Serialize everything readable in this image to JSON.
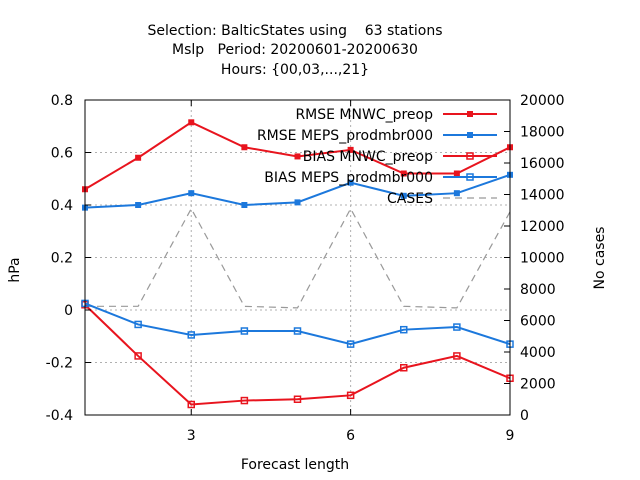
{
  "chart_data": {
    "type": "line",
    "title_lines": [
      "Selection: BalticStates using    63 stations",
      "Mslp   Period: 20200601-20200630",
      "Hours: {00,03,...,21}"
    ],
    "xlabel": "Forecast length",
    "ylabel": "hPa",
    "y2label": "No cases",
    "x": [
      1,
      2,
      3,
      4,
      5,
      6,
      7,
      8,
      9
    ],
    "xlim": [
      1,
      9
    ],
    "xticks": [
      3,
      6,
      9
    ],
    "ylim": [
      -0.4,
      0.8
    ],
    "yticks": [
      -0.4,
      -0.2,
      0,
      0.2,
      0.4,
      0.6,
      0.8
    ],
    "y2lim": [
      0,
      20000
    ],
    "y2ticks": [
      0,
      2000,
      4000,
      6000,
      8000,
      10000,
      12000,
      14000,
      16000,
      18000,
      20000
    ],
    "grid": true,
    "legend_position": "top-right",
    "series": [
      {
        "name": "RMSE MNWC_preop",
        "color": "#e8141e",
        "marker": "filled-square",
        "axis": "left",
        "values": [
          0.46,
          0.58,
          0.715,
          0.62,
          0.585,
          0.61,
          0.52,
          0.52,
          0.62
        ]
      },
      {
        "name": "RMSE MEPS_prodmbr000",
        "color": "#1c78dc",
        "marker": "filled-square",
        "axis": "left",
        "values": [
          0.39,
          0.4,
          0.445,
          0.4,
          0.41,
          0.485,
          0.435,
          0.445,
          0.515
        ]
      },
      {
        "name": "BIAS MNWC_preop",
        "color": "#e8141e",
        "marker": "open-square",
        "axis": "left",
        "values": [
          0.02,
          -0.175,
          -0.36,
          -0.345,
          -0.34,
          -0.325,
          -0.22,
          -0.175,
          -0.26
        ]
      },
      {
        "name": "BIAS MEPS_prodmbr000",
        "color": "#1c78dc",
        "marker": "open-square",
        "axis": "left",
        "values": [
          0.025,
          -0.055,
          -0.095,
          -0.08,
          -0.08,
          -0.13,
          -0.075,
          -0.065,
          -0.13
        ]
      },
      {
        "name": "CASES",
        "color": "#999999",
        "marker": "none",
        "dashed": true,
        "axis": "right",
        "values": [
          6900,
          6900,
          13100,
          6900,
          6800,
          13100,
          6900,
          6800,
          12900
        ]
      }
    ]
  }
}
